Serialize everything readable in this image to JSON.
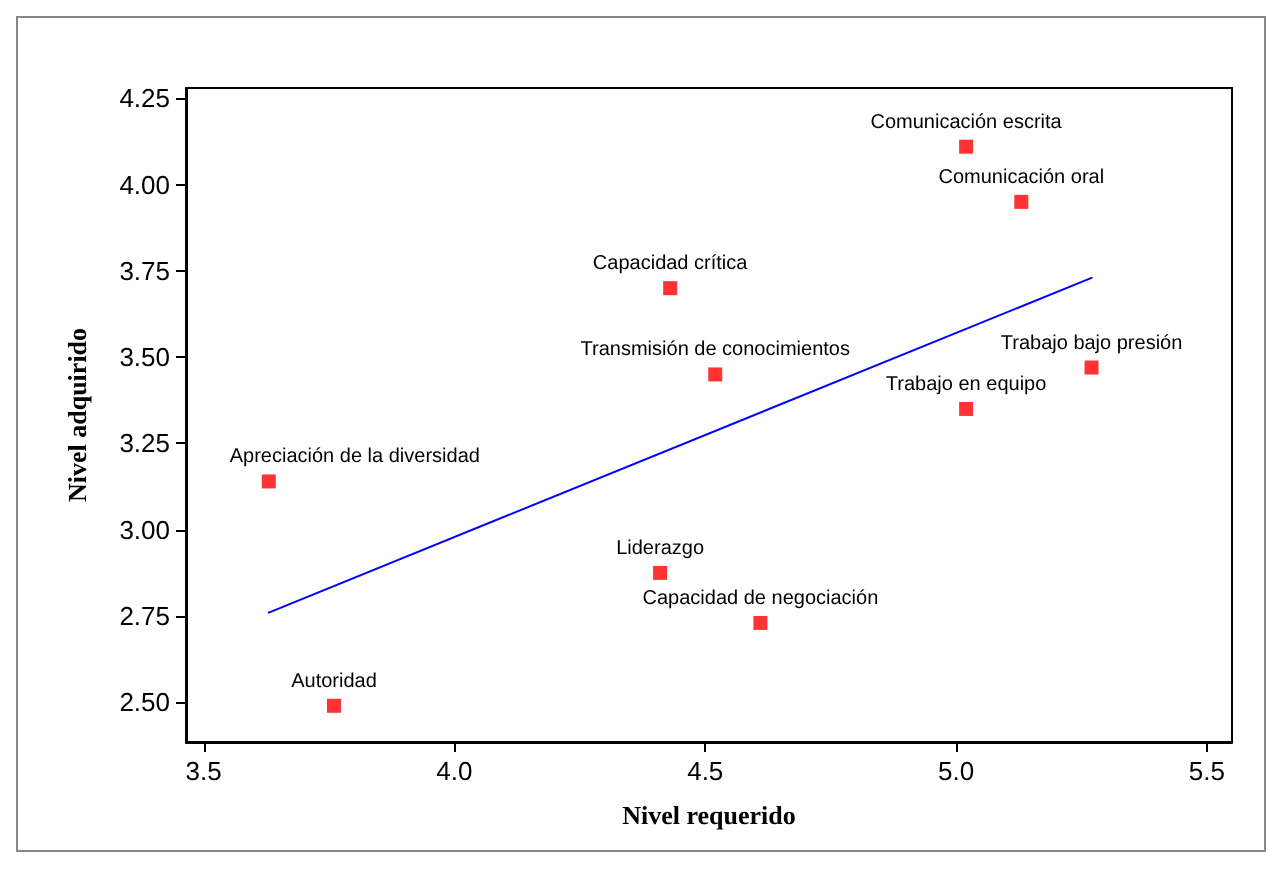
{
  "chart_data": {
    "type": "scatter",
    "xlabel": "Nivel requerido",
    "ylabel": "Nivel adquirido",
    "xlim": [
      3.465,
      5.55
    ],
    "xticks": [
      {
        "value": 3.5,
        "label": "3.5"
      },
      {
        "value": 4,
        "label": "4.0"
      },
      {
        "value": 4.5,
        "label": "4.5"
      },
      {
        "value": 5,
        "label": "5.0"
      },
      {
        "value": 5.5,
        "label": "5.5"
      }
    ],
    "ylim": [
      2.385,
      4.28
    ],
    "yticks": [
      {
        "value": 2.5,
        "label": "2.50"
      },
      {
        "value": 2.75,
        "label": "2.75"
      },
      {
        "value": 3,
        "label": "3.00"
      },
      {
        "value": 3.25,
        "label": "3.25"
      },
      {
        "value": 3.5,
        "label": "3.50"
      },
      {
        "value": 3.75,
        "label": "3.75"
      },
      {
        "value": 4,
        "label": "4.00"
      },
      {
        "value": 4.25,
        "label": "4.25"
      }
    ],
    "grid": false,
    "marker": "square",
    "series": [
      {
        "color": "#ff0000",
        "x": [
          5.02,
          5.13,
          4.43,
          4.52,
          5.27,
          5.02,
          3.63,
          4.41,
          4.61,
          3.76
        ],
        "values": [
          4.11,
          3.95,
          3.7,
          3.45,
          3.47,
          3.35,
          3.14,
          2.875,
          2.73,
          2.49
        ]
      },
      {
        "type": "line",
        "color": "#0000ff",
        "marker": "none",
        "line_style": "solid",
        "x": [
          3.63,
          5.27
        ],
        "values": [
          2.76,
          3.73
        ]
      }
    ],
    "annotations": [
      {
        "text": "Comunicación escrita",
        "x": 5.02,
        "y": 4.11
      },
      {
        "text": "Comunicación oral",
        "x": 5.13,
        "y": 3.95
      },
      {
        "text": "Capacidad crítica",
        "x": 4.43,
        "y": 3.7
      },
      {
        "text": "Transmisión de conocimientos",
        "x": 4.52,
        "y": 3.45
      },
      {
        "text": "Trabajo bajo presión",
        "x": 5.27,
        "y": 3.47
      },
      {
        "text": "Trabajo en equipo",
        "x": 5.02,
        "y": 3.35
      },
      {
        "text": "Apreciación de la diversidad",
        "x": 3.63,
        "y": 3.14
      },
      {
        "text": "Liderazgo",
        "x": 4.41,
        "y": 2.875
      },
      {
        "text": "Capacidad de negociación",
        "x": 4.61,
        "y": 2.73
      },
      {
        "text": "Autoridad",
        "x": 3.76,
        "y": 2.49
      }
    ]
  }
}
